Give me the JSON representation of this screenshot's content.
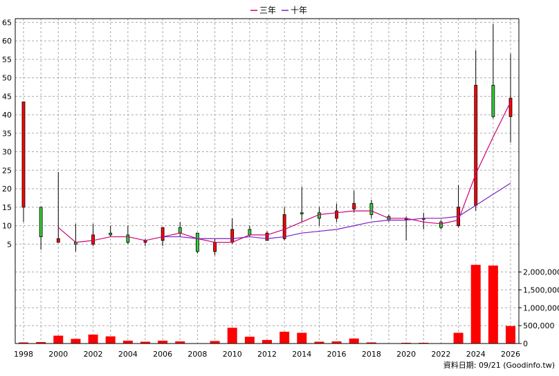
{
  "legend": {
    "items": [
      {
        "label": "三年",
        "color": "#cc0077"
      },
      {
        "label": "十年",
        "color": "#7a1fc4"
      }
    ]
  },
  "footer": {
    "text": "資料日期: 09/21  (Goodinfo.tw)"
  },
  "chart_data": {
    "type": "candlestick",
    "x_ticks": [
      "1998",
      "2000",
      "2002",
      "2004",
      "2006",
      "2008",
      "2010",
      "2012",
      "2014",
      "2016",
      "2018",
      "2020",
      "2022",
      "2024",
      "2026"
    ],
    "price_axis": {
      "ylim": [
        0,
        66
      ],
      "ticks": [
        "5",
        "10",
        "15",
        "20",
        "25",
        "30",
        "35",
        "40",
        "45",
        "50",
        "55",
        "60",
        "65"
      ]
    },
    "volume_axis": {
      "ylim": [
        0,
        2300000
      ],
      "ticks": [
        "0",
        "500,000",
        "1,000,000",
        "1,500,000",
        "2,000,000"
      ]
    },
    "candles": [
      {
        "year": 1998,
        "open": 15,
        "close": 43.5,
        "high": 43.5,
        "low": 11,
        "volume": 30000
      },
      {
        "year": 1999,
        "open": 15,
        "close": 7,
        "high": 15,
        "low": 3.5,
        "volume": 40000
      },
      {
        "year": 2000,
        "open": 5.5,
        "close": 6.5,
        "high": 24.5,
        "low": 5.5,
        "volume": 220000
      },
      {
        "year": 2001,
        "open": 5.5,
        "close": 5,
        "high": 10.5,
        "low": 3,
        "volume": 130000
      },
      {
        "year": 2002,
        "open": 5,
        "close": 7.5,
        "high": 10.5,
        "low": 4.5,
        "volume": 250000
      },
      {
        "year": 2003,
        "open": 8,
        "close": 7.5,
        "high": 10,
        "low": 7,
        "volume": 200000
      },
      {
        "year": 2004,
        "open": 7.5,
        "close": 5.5,
        "high": 10,
        "low": 5,
        "volume": 80000
      },
      {
        "year": 2005,
        "open": 5.5,
        "close": 6,
        "high": 6.5,
        "low": 4.5,
        "volume": 50000
      },
      {
        "year": 2006,
        "open": 6,
        "close": 9.5,
        "high": 9.5,
        "low": 4.5,
        "volume": 80000
      },
      {
        "year": 2007,
        "open": 9.5,
        "close": 8,
        "high": 11,
        "low": 7,
        "volume": 60000
      },
      {
        "year": 2008,
        "open": 8,
        "close": 3,
        "high": 8,
        "low": 2.5,
        "volume": 10000
      },
      {
        "year": 2009,
        "open": 3,
        "close": 5.5,
        "high": 6.5,
        "low": 2,
        "volume": 70000
      },
      {
        "year": 2010,
        "open": 5.5,
        "close": 9,
        "high": 12,
        "low": 5,
        "volume": 440000
      },
      {
        "year": 2011,
        "open": 9,
        "close": 7.5,
        "high": 10,
        "low": 7,
        "volume": 190000
      },
      {
        "year": 2012,
        "open": 6,
        "close": 8,
        "high": 8.5,
        "low": 6,
        "volume": 100000
      },
      {
        "year": 2013,
        "open": 6.5,
        "close": 13,
        "high": 15,
        "low": 6,
        "volume": 330000
      },
      {
        "year": 2014,
        "open": 13.5,
        "close": 13.2,
        "high": 20.5,
        "low": 11,
        "volume": 300000
      },
      {
        "year": 2015,
        "open": 13.5,
        "close": 12,
        "high": 15,
        "low": 10,
        "volume": 50000
      },
      {
        "year": 2016,
        "open": 12,
        "close": 14,
        "high": 16,
        "low": 11,
        "volume": 60000
      },
      {
        "year": 2017,
        "open": 14.5,
        "close": 16,
        "high": 19.5,
        "low": 13.5,
        "volume": 140000
      },
      {
        "year": 2018,
        "open": 16,
        "close": 13,
        "high": 17,
        "low": 12,
        "volume": 30000
      },
      {
        "year": 2019,
        "open": 12.5,
        "close": 11.5,
        "high": 13,
        "low": 11,
        "volume": 10000
      },
      {
        "year": 2020,
        "open": 12,
        "close": 12,
        "high": 12.5,
        "low": 6,
        "volume": 20000
      },
      {
        "year": 2021,
        "open": 12,
        "close": 12,
        "high": 13.5,
        "low": 9,
        "volume": 20000
      },
      {
        "year": 2022,
        "open": 11,
        "close": 9.5,
        "high": 11.5,
        "low": 9,
        "volume": 10000
      },
      {
        "year": 2023,
        "open": 10,
        "close": 15,
        "high": 21,
        "low": 9.5,
        "volume": 300000
      },
      {
        "year": 2024,
        "open": 15.5,
        "close": 48,
        "high": 57.5,
        "low": 14,
        "volume": 2200000
      },
      {
        "year": 2025,
        "open": 48,
        "close": 39.5,
        "high": 64.5,
        "low": 39,
        "volume": 2180000
      },
      {
        "year": 2026,
        "open": 39.5,
        "close": 44.5,
        "high": 56.5,
        "low": 32.5,
        "volume": 490000
      }
    ],
    "series": [
      {
        "name": "三年",
        "color": "#cc0077",
        "points": [
          [
            2000,
            9.5
          ],
          [
            2001,
            5.5
          ],
          [
            2002,
            6
          ],
          [
            2003,
            7
          ],
          [
            2004,
            7
          ],
          [
            2005,
            6
          ],
          [
            2006,
            7
          ],
          [
            2007,
            8
          ],
          [
            2008,
            6.5
          ],
          [
            2009,
            5.5
          ],
          [
            2010,
            5.5
          ],
          [
            2011,
            7.5
          ],
          [
            2012,
            7.5
          ],
          [
            2013,
            9
          ],
          [
            2014,
            11
          ],
          [
            2015,
            13
          ],
          [
            2016,
            13.5
          ],
          [
            2017,
            14
          ],
          [
            2018,
            14
          ],
          [
            2019,
            12
          ],
          [
            2020,
            12
          ],
          [
            2021,
            11
          ],
          [
            2022,
            10.5
          ],
          [
            2023,
            11.5
          ],
          [
            2024,
            24
          ],
          [
            2025,
            34
          ],
          [
            2026,
            43.5
          ]
        ]
      },
      {
        "name": "十年",
        "color": "#7a1fc4",
        "points": [
          [
            2006,
            7
          ],
          [
            2007,
            7
          ],
          [
            2008,
            6.5
          ],
          [
            2009,
            6.5
          ],
          [
            2010,
            6.5
          ],
          [
            2011,
            7
          ],
          [
            2012,
            6.5
          ],
          [
            2013,
            7
          ],
          [
            2014,
            8
          ],
          [
            2015,
            8.5
          ],
          [
            2016,
            9
          ],
          [
            2017,
            10
          ],
          [
            2018,
            11
          ],
          [
            2019,
            11.5
          ],
          [
            2020,
            11.5
          ],
          [
            2021,
            12
          ],
          [
            2022,
            12
          ],
          [
            2023,
            12.5
          ],
          [
            2024,
            15.5
          ],
          [
            2025,
            18.5
          ],
          [
            2026,
            21.5
          ]
        ]
      }
    ],
    "up_color": "#ff0000",
    "down_color": "#33cc33",
    "volume_color": "#ff0000",
    "grid": true
  }
}
